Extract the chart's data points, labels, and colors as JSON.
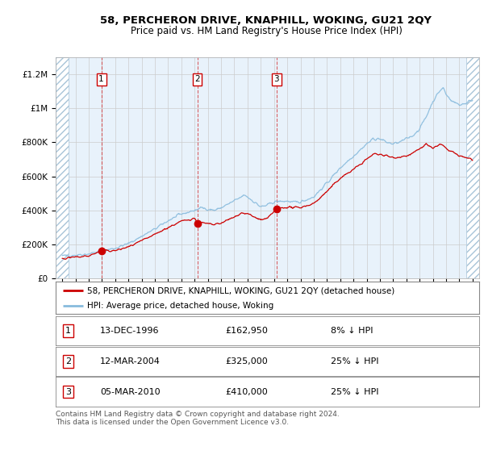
{
  "title": "58, PERCHERON DRIVE, KNAPHILL, WOKING, GU21 2QY",
  "subtitle": "Price paid vs. HM Land Registry's House Price Index (HPI)",
  "legend_line1": "58, PERCHERON DRIVE, KNAPHILL, WOKING, GU21 2QY (detached house)",
  "legend_line2": "HPI: Average price, detached house, Woking",
  "footer_line1": "Contains HM Land Registry data © Crown copyright and database right 2024.",
  "footer_line2": "This data is licensed under the Open Government Licence v3.0.",
  "sales": [
    {
      "num": 1,
      "date": "13-DEC-1996",
      "price": 162950,
      "note": "8% ↓ HPI",
      "x_year": 1996.95
    },
    {
      "num": 2,
      "date": "12-MAR-2004",
      "price": 325000,
      "note": "25% ↓ HPI",
      "x_year": 2004.2
    },
    {
      "num": 3,
      "date": "05-MAR-2010",
      "price": 410000,
      "note": "25% ↓ HPI",
      "x_year": 2010.18
    }
  ],
  "color_red": "#cc0000",
  "color_blue": "#88bbdd",
  "color_grid": "#cccccc",
  "color_bg_chart": "#e8f2fb",
  "ylim": [
    0,
    1300000
  ],
  "xlim_start": 1993.5,
  "xlim_end": 2025.5,
  "hatch_left_end": 1994.5,
  "hatch_right_start": 2024.5
}
